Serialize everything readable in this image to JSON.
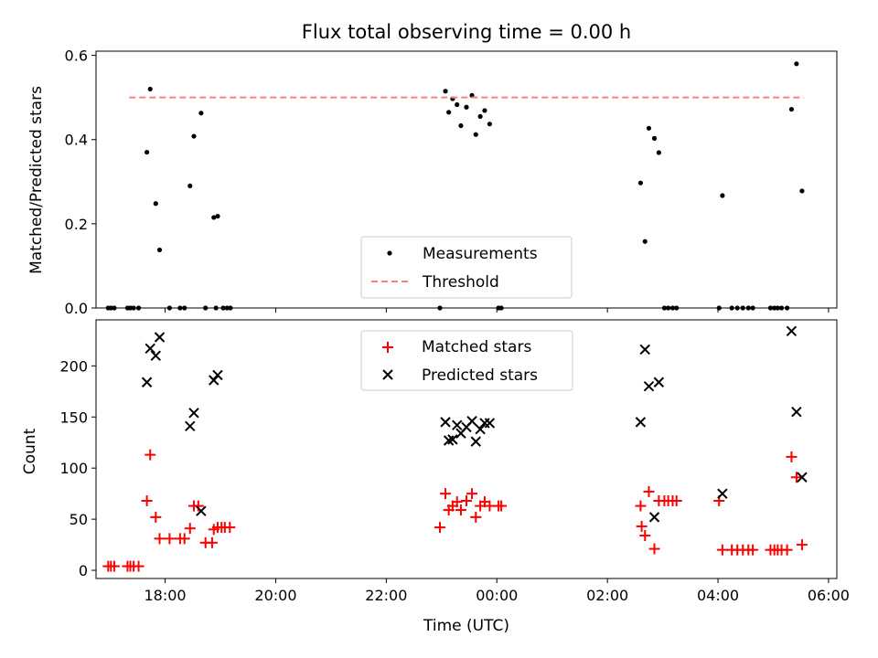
{
  "chart_data": [
    {
      "type": "scatter",
      "title": "Flux total observing time = 0.00 h",
      "ylabel": "Matched/Predicted stars",
      "xlabel": "",
      "xlim": [
        16.75,
        30.15
      ],
      "ylim": [
        0,
        0.61
      ],
      "xticks": [],
      "yticks": [
        0,
        0.2,
        0.4,
        0.6
      ],
      "ytick_labels": [
        "0.0",
        "0.2",
        "0.4",
        "0.6"
      ],
      "grid": false,
      "legend": "lower-center",
      "series": [
        {
          "name": "Measurements",
          "marker": "dot",
          "color": "#000000",
          "points": [
            [
              16.97,
              0
            ],
            [
              17.02,
              0
            ],
            [
              17.08,
              0
            ],
            [
              17.32,
              0
            ],
            [
              17.37,
              0
            ],
            [
              17.43,
              0
            ],
            [
              17.52,
              0
            ],
            [
              17.67,
              0.37
            ],
            [
              17.73,
              0.52
            ],
            [
              17.83,
              0.248
            ],
            [
              17.9,
              0.138
            ],
            [
              18.08,
              0
            ],
            [
              18.27,
              0
            ],
            [
              18.35,
              0
            ],
            [
              18.45,
              0.29
            ],
            [
              18.52,
              0.408
            ],
            [
              18.65,
              0.463
            ],
            [
              18.73,
              0
            ],
            [
              18.88,
              0.215
            ],
            [
              18.95,
              0.218
            ],
            [
              18.92,
              0
            ],
            [
              19.05,
              0
            ],
            [
              19.12,
              0
            ],
            [
              19.18,
              0
            ],
            [
              22.97,
              0
            ],
            [
              23.07,
              0.515
            ],
            [
              23.13,
              0.465
            ],
            [
              23.2,
              0.497
            ],
            [
              23.28,
              0.483
            ],
            [
              23.35,
              0.433
            ],
            [
              23.45,
              0.477
            ],
            [
              23.55,
              0.505
            ],
            [
              23.62,
              0.412
            ],
            [
              23.7,
              0.455
            ],
            [
              23.78,
              0.469
            ],
            [
              23.87,
              0.437
            ],
            [
              24.03,
              0
            ],
            [
              24.08,
              0
            ],
            [
              26.6,
              0.297
            ],
            [
              26.68,
              0.158
            ],
            [
              26.75,
              0.427
            ],
            [
              26.85,
              0.403
            ],
            [
              26.93,
              0.369
            ],
            [
              27.03,
              0
            ],
            [
              27.1,
              0
            ],
            [
              27.18,
              0
            ],
            [
              27.25,
              0
            ],
            [
              28.02,
              0
            ],
            [
              28.08,
              0.267
            ],
            [
              28.25,
              0
            ],
            [
              28.35,
              0
            ],
            [
              28.45,
              0
            ],
            [
              28.55,
              0
            ],
            [
              28.63,
              0
            ],
            [
              28.95,
              0
            ],
            [
              29.02,
              0
            ],
            [
              29.08,
              0
            ],
            [
              29.15,
              0
            ],
            [
              29.25,
              0
            ],
            [
              29.33,
              0.472
            ],
            [
              29.42,
              0.58
            ],
            [
              29.52,
              0.278
            ]
          ]
        },
        {
          "name": "Threshold",
          "marker": "dashed-line",
          "color": "#ff7f7f",
          "points": [
            [
              17.35,
              0.5
            ],
            [
              29.55,
              0.5
            ]
          ]
        }
      ]
    },
    {
      "type": "scatter",
      "title": "",
      "xlabel": "Time (UTC)",
      "ylabel": "Count",
      "xlim": [
        16.75,
        30.15
      ],
      "ylim": [
        -8,
        245
      ],
      "xticks": [
        18,
        20,
        22,
        24,
        26,
        28,
        30
      ],
      "xtick_labels": [
        "18:00",
        "20:00",
        "22:00",
        "00:00",
        "02:00",
        "04:00",
        "06:00"
      ],
      "yticks": [
        0,
        50,
        100,
        150,
        200
      ],
      "ytick_labels": [
        "0",
        "50",
        "100",
        "150",
        "200"
      ],
      "grid": false,
      "legend": "top-center",
      "series": [
        {
          "name": "Matched stars",
          "marker": "plus",
          "color": "#ff0000",
          "points": [
            [
              16.97,
              4
            ],
            [
              17.02,
              4
            ],
            [
              17.08,
              4
            ],
            [
              17.32,
              4
            ],
            [
              17.37,
              4
            ],
            [
              17.43,
              4
            ],
            [
              17.52,
              4
            ],
            [
              17.67,
              68
            ],
            [
              17.73,
              113
            ],
            [
              17.83,
              52
            ],
            [
              17.9,
              31
            ],
            [
              18.08,
              31
            ],
            [
              18.27,
              31
            ],
            [
              18.35,
              31
            ],
            [
              18.45,
              41
            ],
            [
              18.52,
              63
            ],
            [
              18.6,
              63
            ],
            [
              18.73,
              27
            ],
            [
              18.85,
              27
            ],
            [
              18.88,
              40
            ],
            [
              18.95,
              42
            ],
            [
              19.02,
              42
            ],
            [
              19.08,
              42
            ],
            [
              19.17,
              42
            ],
            [
              22.97,
              42
            ],
            [
              23.07,
              75
            ],
            [
              23.13,
              59
            ],
            [
              23.2,
              63
            ],
            [
              23.28,
              67
            ],
            [
              23.35,
              59
            ],
            [
              23.45,
              68
            ],
            [
              23.55,
              75
            ],
            [
              23.62,
              52
            ],
            [
              23.7,
              63
            ],
            [
              23.78,
              67
            ],
            [
              23.87,
              63
            ],
            [
              24.03,
              63
            ],
            [
              24.08,
              63
            ],
            [
              26.6,
              63
            ],
            [
              26.62,
              43
            ],
            [
              26.68,
              34
            ],
            [
              26.75,
              77
            ],
            [
              26.85,
              21
            ],
            [
              26.93,
              68
            ],
            [
              27.03,
              68
            ],
            [
              27.1,
              68
            ],
            [
              27.18,
              68
            ],
            [
              27.25,
              68
            ],
            [
              28.02,
              68
            ],
            [
              28.08,
              20
            ],
            [
              28.25,
              20
            ],
            [
              28.35,
              20
            ],
            [
              28.45,
              20
            ],
            [
              28.55,
              20
            ],
            [
              28.63,
              20
            ],
            [
              28.95,
              20
            ],
            [
              29.02,
              20
            ],
            [
              29.08,
              20
            ],
            [
              29.15,
              20
            ],
            [
              29.25,
              20
            ],
            [
              29.33,
              111
            ],
            [
              29.42,
              91
            ],
            [
              29.52,
              25
            ]
          ]
        },
        {
          "name": "Predicted stars",
          "marker": "x",
          "color": "#000000",
          "points": [
            [
              17.67,
              184
            ],
            [
              17.73,
              217
            ],
            [
              17.83,
              210
            ],
            [
              17.9,
              228
            ],
            [
              18.45,
              141
            ],
            [
              18.52,
              154
            ],
            [
              18.65,
              58
            ],
            [
              18.88,
              186
            ],
            [
              18.95,
              191
            ],
            [
              23.07,
              145
            ],
            [
              23.13,
              127
            ],
            [
              23.2,
              128
            ],
            [
              23.28,
              142
            ],
            [
              23.35,
              134
            ],
            [
              23.45,
              140
            ],
            [
              23.55,
              146
            ],
            [
              23.62,
              126
            ],
            [
              23.7,
              138
            ],
            [
              23.78,
              144
            ],
            [
              23.87,
              144
            ],
            [
              26.6,
              145
            ],
            [
              26.68,
              216
            ],
            [
              26.75,
              180
            ],
            [
              26.85,
              52
            ],
            [
              26.93,
              184
            ],
            [
              28.08,
              75
            ],
            [
              29.33,
              234
            ],
            [
              29.42,
              155
            ],
            [
              29.52,
              91
            ]
          ]
        }
      ]
    }
  ]
}
